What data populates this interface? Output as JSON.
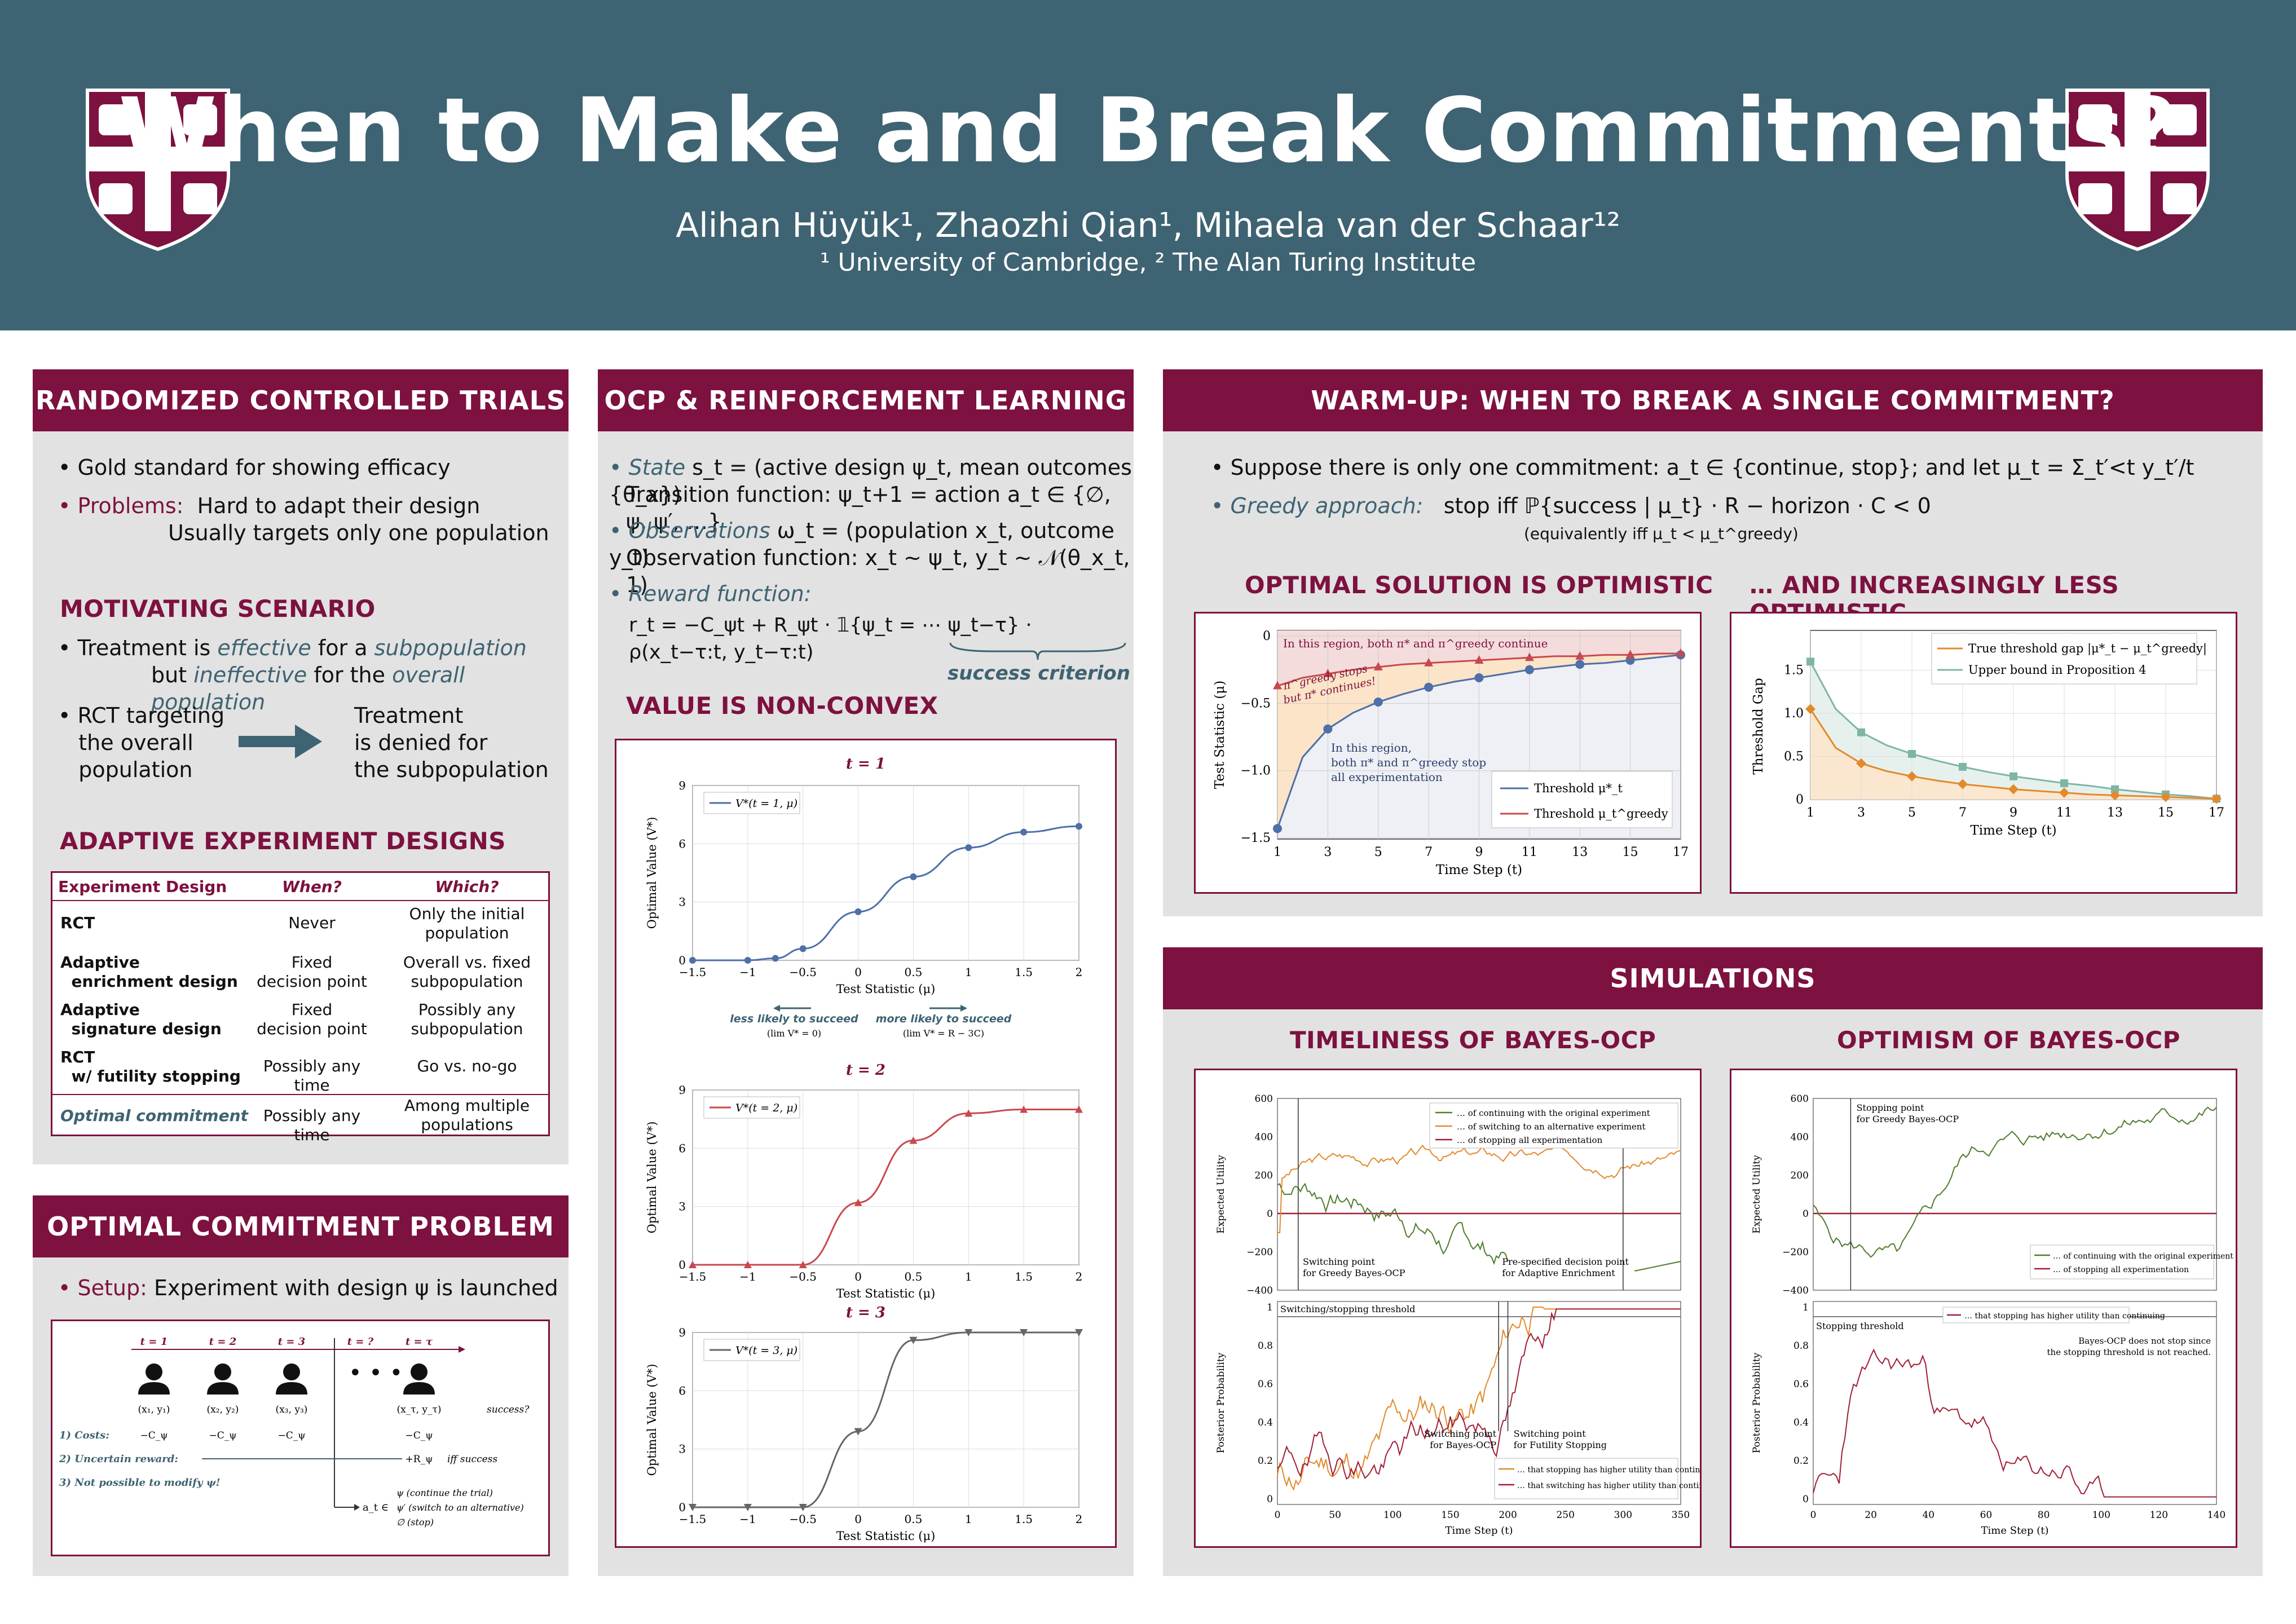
{
  "header": {
    "title": "When to Make and Break Commitments?",
    "authors": "Alihan Hüyük¹, Zhaozhi Qian¹, Mihaela van der Schaar¹²",
    "affiliations": "¹ University of Cambridge, ² The Alan Turing Institute"
  },
  "colors": {
    "header": "#3e6372",
    "accent": "#7d1140",
    "teal": "#3e6372",
    "panel": "#e2e2e2",
    "blue_series": "#4e6fa8",
    "red_series": "#c9484e",
    "orange_series": "#e28a2b",
    "green_series": "#4f7c2c",
    "sage_series": "#7eb5a6"
  },
  "rct": {
    "heading": "RANDOMIZED CONTROLLED TRIALS",
    "bullet1": "Gold standard for showing efficacy",
    "problems_label": "Problems:",
    "problems1": "Hard to adapt their design",
    "problems2": "Usually targets only one population",
    "motivating_heading": "MOTIVATING SCENARIO",
    "mot1a": "Treatment is ",
    "mot1b": "effective",
    "mot1c": " for a ",
    "mot1d": "subpopulation",
    "mot2a": "but ",
    "mot2b": "ineffective",
    "mot2c": " for the ",
    "mot2d": "overall population",
    "rct_target": [
      "RCT targeting",
      "the overall",
      "population"
    ],
    "denied": [
      "Treatment",
      "is denied for",
      "the subpopulation"
    ],
    "adaptive_heading": "ADAPTIVE EXPERIMENT DESIGNS",
    "table_headers": [
      "Experiment Design",
      "When?",
      "Which?"
    ],
    "table_rows": [
      {
        "design": [
          "RCT"
        ],
        "when": [
          "Never"
        ],
        "which": [
          "Only the initial",
          "population"
        ]
      },
      {
        "design": [
          "Adaptive",
          "enrichment design"
        ],
        "when": [
          "Fixed",
          "decision point"
        ],
        "which": [
          "Overall vs. fixed",
          "subpopulation"
        ]
      },
      {
        "design": [
          "Adaptive",
          "signature design"
        ],
        "when": [
          "Fixed",
          "decision point"
        ],
        "which": [
          "Possibly any",
          "subpopulation"
        ]
      },
      {
        "design": [
          "RCT",
          "w/ futility stopping"
        ],
        "when": [
          "Possibly any time"
        ],
        "which": [
          "Go vs. no-go"
        ]
      },
      {
        "design": [
          "Optimal commitment"
        ],
        "when": [
          "Possibly any time"
        ],
        "which": [
          "Among multiple",
          "populations"
        ]
      }
    ]
  },
  "ocp_problem": {
    "heading": "OPTIMAL COMMITMENT PROBLEM",
    "setup_label": "Setup:",
    "setup_text": "Experiment with design ψ is launched",
    "times": [
      "t = 1",
      "t = 2",
      "t = 3",
      "t = ?",
      "t = τ"
    ],
    "obs": [
      "(x₁, y₁)",
      "(x₂, y₂)",
      "(x₃, y₃)",
      "(x_τ, y_τ)"
    ],
    "success_q": "success?",
    "costs_label": "1) Costs:",
    "costs": [
      "−C_ψ",
      "−C_ψ",
      "−C_ψ",
      "−C_ψ"
    ],
    "reward_label": "2) Uncertain reward:",
    "reward": "+R_ψ",
    "iff": "iff success",
    "modify": "3) Not possible to modify ψ!",
    "actions": [
      "ψ   (continue the trial)",
      "ψ′  (switch to an alternative)",
      "∅   (stop)"
    ],
    "action_prefix": "a_t ∈"
  },
  "ocp_rl": {
    "heading": "OCP & REINFORCEMENT LEARNING",
    "state_label": "State",
    "state_text": " s_t = (active design ψ_t, mean outcomes {θ_x})",
    "transition": "Transition function: ψ_t+1 = action a_t ∈ {∅, ψ, ψ′, …}",
    "obs_label": "Observations",
    "obs_text": " ω_t = (population x_t, outcome y_t)",
    "obs_fn": "Observation function: x_t ~ ψ_t, y_t ~ 𝒩(θ_x_t, 1)",
    "reward_label": "Reward function:",
    "reward_fn": "r_t = −C_ψt + R_ψt · 𝟙{ψ_t = ⋯ ψ_t−τ} · ρ(x_t−τ:t, y_t−τ:t)",
    "success_criterion": "success criterion",
    "nonconvex_heading": "VALUE IS NON-CONVEX",
    "less": "less likely to succeed",
    "less_sub": "(lim V* = 0)",
    "more": "more likely to succeed",
    "more_sub": "(lim V* = R − 3C)"
  },
  "value_charts": [
    {
      "title": "t = 1",
      "legend": "V*(t = 1, μ)"
    },
    {
      "title": "t = 2",
      "legend": "V*(t = 2, μ)"
    },
    {
      "title": "t = 3",
      "legend": "V*(t = 3, μ)"
    }
  ],
  "value_axis": {
    "xlabel": "Test Statistic (μ)",
    "ylabel": "Optimal Value (V*)",
    "xticks": [
      "−1.5",
      "−1",
      "−0.5",
      "0",
      "0.5",
      "1",
      "1.5",
      "2"
    ],
    "yticks": [
      "0",
      "3",
      "6",
      "9"
    ]
  },
  "warmup": {
    "heading": "WARM-UP: WHEN TO BREAK A SINGLE COMMITMENT?",
    "line1": "Suppose there is only one commitment: a_t ∈ {continue, stop}; and let μ_t = Σ_t′<t y_t′/t",
    "greedy_label": "Greedy approach:",
    "greedy_text": "stop iff   ℙ{success | μ_t} · R − horizon · C < 0",
    "equiv": "(equivalently iff μ_t < μ_t^greedy)",
    "opt_heading": "OPTIMAL SOLUTION IS OPTIMISTIC",
    "less_heading": "… AND INCREASINGLY LESS OPTIMISTIC"
  },
  "chart_data": [
    {
      "type": "line",
      "title": "t = 1",
      "x": [
        -1.5,
        -1,
        -0.75,
        -0.5,
        0,
        0.5,
        1,
        1.5,
        2
      ],
      "series": [
        {
          "name": "V*(t = 1, μ)",
          "values": [
            0,
            0,
            0.1,
            0.6,
            2.5,
            4.3,
            5.8,
            6.6,
            6.9
          ]
        }
      ],
      "xlabel": "Test Statistic (μ)",
      "ylabel": "Optimal Value (V*)",
      "ylim": [
        0,
        9
      ]
    },
    {
      "type": "line",
      "title": "t = 2",
      "x": [
        -1.5,
        -1,
        -0.5,
        0,
        0.5,
        1,
        1.5,
        2
      ],
      "series": [
        {
          "name": "V*(t = 2, μ)",
          "values": [
            0,
            0,
            0,
            3.2,
            6.4,
            7.8,
            8.0,
            8.0
          ]
        }
      ],
      "xlabel": "Test Statistic (μ)",
      "ylabel": "Optimal Value (V*)",
      "ylim": [
        0,
        9
      ]
    },
    {
      "type": "line",
      "title": "t = 3",
      "x": [
        -1.5,
        -1,
        -0.5,
        0,
        0.5,
        1,
        1.5,
        2
      ],
      "series": [
        {
          "name": "V*(t = 3, μ)",
          "values": [
            0,
            0,
            0,
            3.9,
            8.6,
            9.0,
            9.0,
            9.0
          ]
        }
      ],
      "xlabel": "Test Statistic (μ)",
      "ylabel": "Optimal Value (V*)",
      "ylim": [
        0,
        9
      ]
    },
    {
      "type": "line",
      "x": [
        1,
        2,
        3,
        4,
        5,
        6,
        7,
        8,
        9,
        10,
        11,
        12,
        13,
        14,
        15,
        16,
        17
      ],
      "series": [
        {
          "name": "Threshold μ*_t",
          "values": [
            -1.43,
            -0.9,
            -0.69,
            -0.57,
            -0.49,
            -0.43,
            -0.38,
            -0.34,
            -0.31,
            -0.28,
            -0.25,
            -0.23,
            -0.21,
            -0.2,
            -0.18,
            -0.16,
            -0.14
          ]
        },
        {
          "name": "Threshold μ_t^greedy",
          "values": [
            -0.37,
            -0.31,
            -0.28,
            -0.25,
            -0.23,
            -0.21,
            -0.2,
            -0.19,
            -0.18,
            -0.17,
            -0.16,
            -0.15,
            -0.15,
            -0.14,
            -0.14,
            -0.13,
            -0.13
          ]
        }
      ],
      "xlabel": "Time Step (t)",
      "ylabel": "Test Statistic (μ)",
      "ylim": [
        -1.5,
        0
      ],
      "annotations": [
        "In this region, both π* and π^greedy continue",
        "π^greedy stops but π* continues!",
        "In this region, both π* and π^greedy stop all experimentation"
      ]
    },
    {
      "type": "line",
      "x": [
        1,
        2,
        3,
        4,
        5,
        6,
        7,
        8,
        9,
        10,
        11,
        12,
        13,
        14,
        15,
        16,
        17
      ],
      "series": [
        {
          "name": "True threshold gap |μ*_t − μ_t^greedy|",
          "values": [
            1.05,
            0.6,
            0.42,
            0.33,
            0.27,
            0.22,
            0.18,
            0.15,
            0.12,
            0.1,
            0.08,
            0.06,
            0.05,
            0.04,
            0.03,
            0.02,
            0.01
          ]
        },
        {
          "name": "Upper bound in Proposition 4",
          "values": [
            1.6,
            1.05,
            0.78,
            0.63,
            0.53,
            0.45,
            0.38,
            0.32,
            0.27,
            0.23,
            0.19,
            0.16,
            0.12,
            0.09,
            0.06,
            0.04,
            0.01
          ]
        }
      ],
      "xlabel": "Time Step (t)",
      "ylabel": "Threshold Gap",
      "ylim": [
        0,
        1.6
      ]
    }
  ],
  "warm_axes": {
    "opt_xticks": [
      "1",
      "3",
      "5",
      "7",
      "9",
      "11",
      "13",
      "15",
      "17"
    ],
    "opt_yticks": [
      "0",
      "−0.5",
      "−1.0",
      "−1.5"
    ],
    "opt_xlabel": "Time Step (t)",
    "opt_ylabel": "Test Statistic (μ)",
    "gap_yticks": [
      "0",
      "0.5",
      "1.0",
      "1.5"
    ],
    "gap_ylabel": "Threshold Gap",
    "region1": "In this region, both π* and π^greedy continue",
    "region2a": "π^greedy stops",
    "region2b": "but π* continues!",
    "region3": [
      "In this region,",
      "both π* and π^greedy stop",
      "all experimentation"
    ],
    "leg1": "Threshold μ*_t",
    "leg2": "Threshold μ_t^greedy",
    "gleg1": "True threshold gap |μ*_t − μ_t^greedy|",
    "gleg2": "Upper bound in Proposition 4"
  },
  "simulations": {
    "heading": "SIMULATIONS",
    "timeliness_heading": "TIMELINESS OF BAYES-OCP",
    "optimism_heading": "OPTIMISM OF BAYES-OCP",
    "t_top_legend": [
      "… of continuing with the original experiment",
      "… of switching to an alternative experiment",
      "… of stopping all experimentation"
    ],
    "t_top_ylabel": "Expected Utility",
    "t_top_yticks": [
      "600",
      "400",
      "200",
      "0",
      "−200",
      "−400"
    ],
    "t_sw": [
      "Switching point",
      "for Greedy Bayes-OCP"
    ],
    "t_pre": [
      "Pre-specified decision point",
      "for Adaptive Enrichment"
    ],
    "t_bot_ylabel": "Posterior Probability",
    "t_threshold": "Switching/stopping threshold",
    "t_sw2": [
      "Switching point",
      "for Bayes-OCP"
    ],
    "t_fut": [
      "Switching point",
      "for Futility Stopping"
    ],
    "t_bot_legend": [
      "… that stopping has higher utility than continuing",
      "… that switching has higher utility than continuing"
    ],
    "t_xticks": [
      "0",
      "50",
      "100",
      "150",
      "200",
      "250",
      "300",
      "350"
    ],
    "xlabel": "Time Step (t)",
    "p_yticks": [
      "1",
      "0.8",
      "0.6",
      "0.4",
      "0.2",
      "0"
    ],
    "o_stop": [
      "Stopping point",
      "for Greedy Bayes-OCP"
    ],
    "o_top_legend": [
      "… of continuing with the original experiment",
      "… of stopping all experimentation"
    ],
    "o_bot_legend": "… that stopping has higher utility than continuing",
    "o_threshold": "Stopping threshold",
    "o_note": [
      "Bayes-OCP does not stop since",
      "the stopping threshold is not reached."
    ],
    "o_xticks": [
      "0",
      "20",
      "40",
      "60",
      "80",
      "100",
      "120",
      "140"
    ]
  }
}
